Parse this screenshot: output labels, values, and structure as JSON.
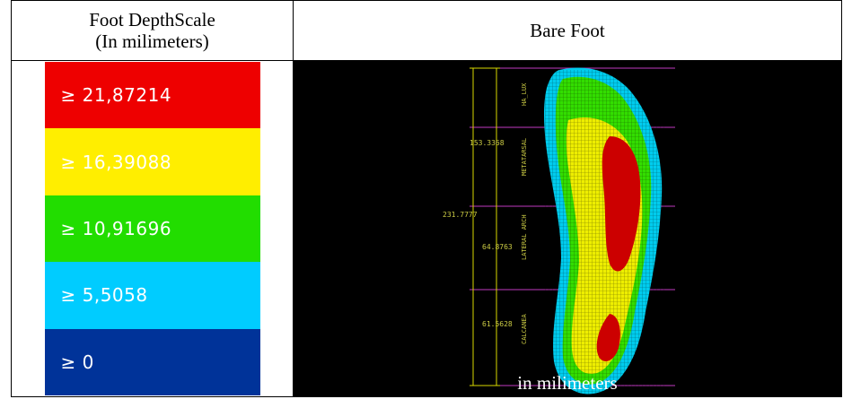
{
  "header": {
    "left_line1": "Foot DepthScale",
    "left_line2": "(In milimeters)",
    "right": "Bare Foot"
  },
  "scale": [
    {
      "label": "≥ 21,87214",
      "color": "#ee0000"
    },
    {
      "label": "≥ 16,39088",
      "color": "#ffee00"
    },
    {
      "label": "≥ 10,91696",
      "color": "#22dd00"
    },
    {
      "label": "≥ 5,5058",
      "color": "#00ccff"
    },
    {
      "label": "≥ 0",
      "color": "#003399"
    }
  ],
  "foot_image": {
    "annotations": {
      "total_length": "231.7777",
      "segment_1": "153.3368",
      "segment_2": "64.8763",
      "segment_3": "61.5628"
    },
    "regions": [
      "HA_LUX",
      "METATARSAL",
      "LATERAL ARCH",
      "CALCANEA"
    ],
    "caption": "in milimeters"
  }
}
